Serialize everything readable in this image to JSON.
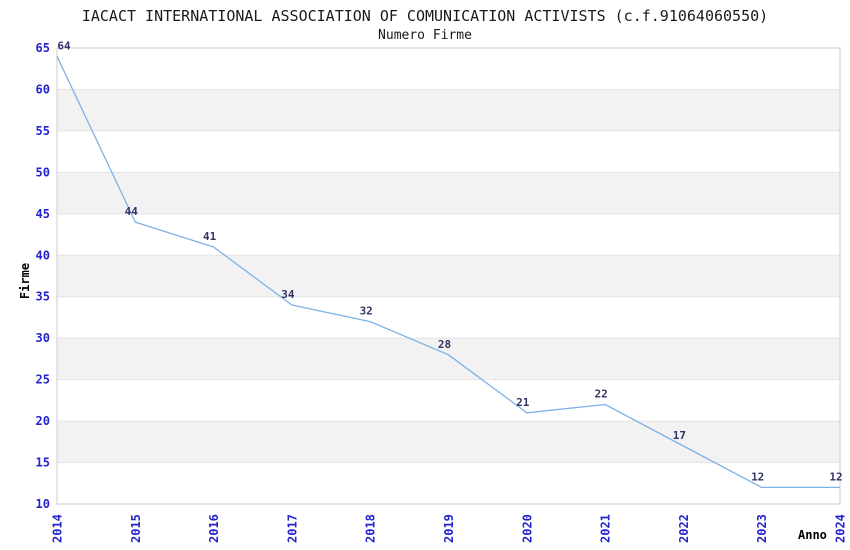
{
  "header": {
    "title": "IACACT INTERNATIONAL ASSOCIATION OF COMUNICATION ACTIVISTS (c.f.91064060550)",
    "subtitle": "Numero Firme"
  },
  "chart_data": {
    "type": "line",
    "title": "IACACT INTERNATIONAL ASSOCIATION OF COMUNICATION ACTIVISTS (c.f.91064060550)",
    "subtitle": "Numero Firme",
    "xlabel": "Anno",
    "ylabel": "Firme",
    "categories": [
      "2014",
      "2015",
      "2016",
      "2017",
      "2018",
      "2019",
      "2020",
      "2021",
      "2022",
      "2023",
      "2024"
    ],
    "values": [
      64,
      44,
      41,
      34,
      32,
      28,
      21,
      22,
      17,
      12,
      12
    ],
    "data_labels_shown": true,
    "ylim": [
      10,
      65
    ],
    "ytick_step": 5,
    "yticks": [
      10,
      15,
      20,
      25,
      30,
      35,
      40,
      45,
      50,
      55,
      60,
      65
    ],
    "grid": "horizontal-only",
    "banded_background": true,
    "legend": "none",
    "markers": "none",
    "colors": {
      "line": "#7eb1e8",
      "tick_label": "#2424cc",
      "data_label": "#333366",
      "band": "#f2f2f2",
      "grid": "#e4e4e4",
      "border": "#cccccc",
      "title_text": "#1a1a1a",
      "axis_title_text": "#000000",
      "background": "#ffffff"
    }
  }
}
